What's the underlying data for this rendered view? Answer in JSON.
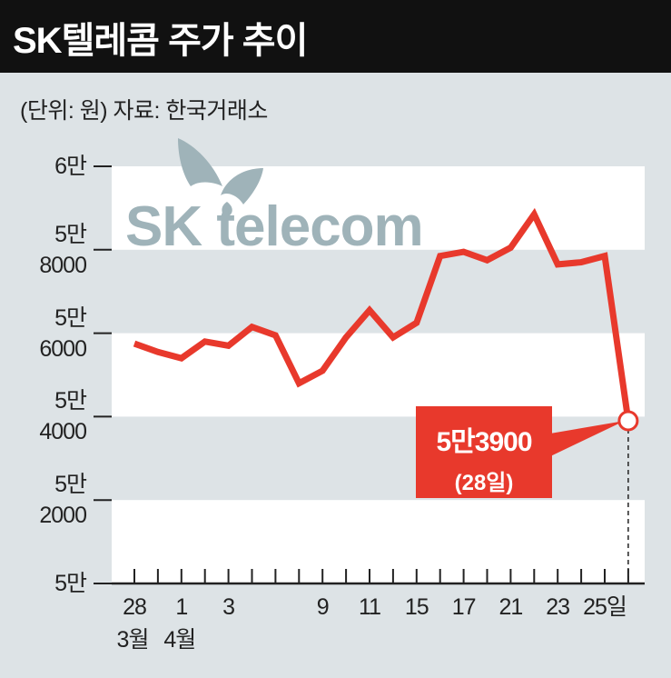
{
  "chart_data": {
    "type": "line",
    "title": "SK텔레콤 주가 추이",
    "subtitle": "(단위: 원)  자료: 한국거래소",
    "watermark": "SK telecom",
    "categories": [
      "28",
      null,
      "1",
      null,
      "3",
      null,
      null,
      null,
      "9",
      null,
      "11",
      null,
      "15",
      null,
      "17",
      null,
      "21",
      null,
      "23",
      null,
      "25일",
      null
    ],
    "months": [
      "3월",
      "4월"
    ],
    "series": [
      {
        "name": "SK텔레콤",
        "color": "#e8392c",
        "values": [
          55750,
          55550,
          55400,
          55800,
          55700,
          56150,
          55950,
          54800,
          55100,
          55900,
          56550,
          55900,
          56250,
          57850,
          57950,
          57750,
          58050,
          58850,
          57650,
          57700,
          57850,
          53900
        ],
        "value_labels": [
          null,
          null,
          null,
          null,
          null,
          null,
          null,
          null,
          null,
          null,
          null,
          null,
          null,
          null,
          null,
          null,
          null,
          null,
          null,
          null,
          null,
          "5만3900"
        ]
      }
    ],
    "annotation": "(28일)",
    "ylim": [
      50000,
      60000
    ],
    "yticks": [
      {
        "value": 50000,
        "label": "5만"
      },
      {
        "value": 52000,
        "label": "5만\n2000"
      },
      {
        "value": 54000,
        "label": "5만\n4000"
      },
      {
        "value": 56000,
        "label": "5만\n6000"
      },
      {
        "value": 58000,
        "label": "5만\n8000"
      },
      {
        "value": 60000,
        "label": "6만"
      }
    ],
    "bands": true
  }
}
